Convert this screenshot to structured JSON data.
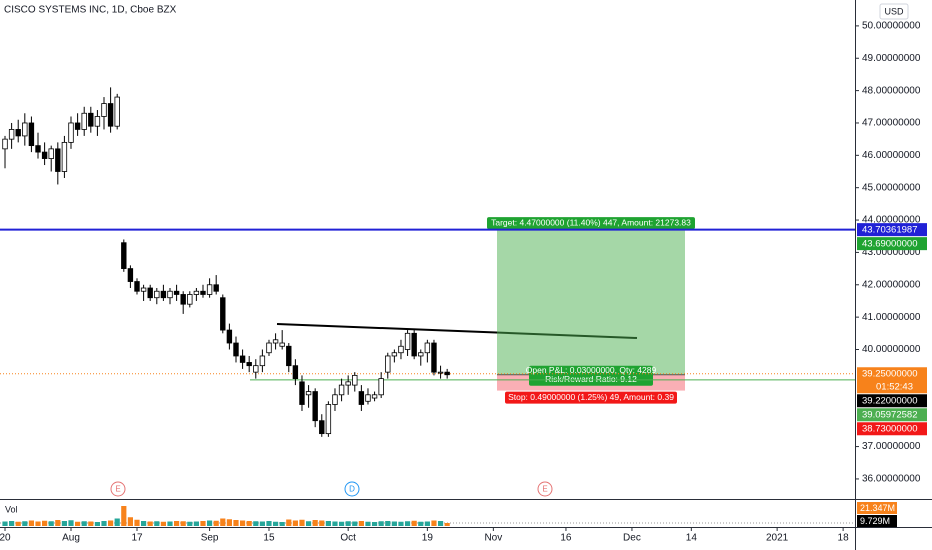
{
  "chart_data": {
    "type": "candlestick",
    "title": "CISCO SYSTEMS INC, 1D, Cboe BZX",
    "currency": "USD",
    "open": [
      46.2,
      46.5,
      46.8,
      46.6,
      47.0,
      46.3,
      46.1,
      45.9,
      46.2,
      45.5,
      46.4,
      47.0,
      46.8,
      47.3,
      46.9,
      47.2,
      47.6,
      46.9,
      43.3,
      42.5,
      42.1,
      41.8,
      41.9,
      41.6,
      41.8,
      41.6,
      41.8,
      41.7,
      41.4,
      41.7,
      41.8,
      41.7,
      42.0,
      41.6,
      40.6,
      40.2,
      39.8,
      39.6,
      39.3,
      39.5,
      39.9,
      40.2,
      40.1,
      40.1,
      39.5,
      39.0,
      38.6,
      38.7,
      37.8,
      37.4,
      38.3,
      38.6,
      38.9,
      38.9,
      38.7,
      38.4,
      38.5,
      38.6,
      39.3,
      39.8,
      39.9,
      40.0,
      40.5,
      39.8,
      39.9,
      40.2,
      39.3,
      39.3
    ],
    "high": [
      46.6,
      47.0,
      47.1,
      47.3,
      47.2,
      46.7,
      46.4,
      46.3,
      46.4,
      46.6,
      47.2,
      47.3,
      47.5,
      47.5,
      47.4,
      47.8,
      48.1,
      47.9,
      43.4,
      42.6,
      42.2,
      42.0,
      42.0,
      41.9,
      42.0,
      41.9,
      42.0,
      41.8,
      41.8,
      41.9,
      42.0,
      42.2,
      42.3,
      41.7,
      40.8,
      40.4,
      40.0,
      39.8,
      39.7,
      40.0,
      40.3,
      40.5,
      40.6,
      40.2,
      39.7,
      39.2,
      38.9,
      38.8,
      38.0,
      38.4,
      38.8,
      39.1,
      39.2,
      39.3,
      38.9,
      38.8,
      38.7,
      39.3,
      39.9,
      40.0,
      40.3,
      40.6,
      40.6,
      40.0,
      40.3,
      40.3,
      39.5,
      39.4
    ],
    "low": [
      45.6,
      46.2,
      46.4,
      46.3,
      46.1,
      45.9,
      45.7,
      45.5,
      45.1,
      45.3,
      46.2,
      46.6,
      46.6,
      46.7,
      46.6,
      46.8,
      46.7,
      46.8,
      42.4,
      41.9,
      41.7,
      41.5,
      41.5,
      41.4,
      41.5,
      41.4,
      41.5,
      41.1,
      41.3,
      41.5,
      41.6,
      41.6,
      41.7,
      40.5,
      40.0,
      39.6,
      39.4,
      39.3,
      39.1,
      39.3,
      39.8,
      40.0,
      40.0,
      39.3,
      38.9,
      38.1,
      38.2,
      37.6,
      37.3,
      37.3,
      38.1,
      38.4,
      38.6,
      38.7,
      38.1,
      38.3,
      38.4,
      38.5,
      39.1,
      39.6,
      39.7,
      39.8,
      39.7,
      39.5,
      39.6,
      39.2,
      39.1,
      39.1
    ],
    "close": [
      46.5,
      46.8,
      46.6,
      47.0,
      46.3,
      46.1,
      45.9,
      46.2,
      45.5,
      46.4,
      47.0,
      46.8,
      47.3,
      46.9,
      47.2,
      47.6,
      46.9,
      47.8,
      42.5,
      42.1,
      41.8,
      41.9,
      41.6,
      41.8,
      41.6,
      41.8,
      41.7,
      41.4,
      41.7,
      41.8,
      41.7,
      42.0,
      41.8,
      40.6,
      40.2,
      39.8,
      39.6,
      39.5,
      39.5,
      39.8,
      40.2,
      40.3,
      40.2,
      39.5,
      39.1,
      38.3,
      38.7,
      37.8,
      37.4,
      38.3,
      38.6,
      38.9,
      39.0,
      39.2,
      38.3,
      38.6,
      38.6,
      39.1,
      39.8,
      39.9,
      40.1,
      40.5,
      39.8,
      39.9,
      40.2,
      39.3,
      39.3,
      39.22
    ],
    "volume": [
      18,
      20,
      17,
      19,
      22,
      18,
      21,
      19,
      24,
      20,
      23,
      17,
      19,
      18,
      16,
      20,
      22,
      30,
      80,
      35,
      25,
      20,
      18,
      19,
      17,
      18,
      20,
      19,
      17,
      18,
      20,
      22,
      21,
      30,
      27,
      24,
      22,
      20,
      19,
      18,
      20,
      17,
      16,
      26,
      22,
      25,
      19,
      24,
      22,
      20,
      18,
      17,
      19,
      18,
      20,
      17,
      16,
      19,
      20,
      18,
      17,
      19,
      21,
      17,
      18,
      22,
      20,
      12
    ],
    "volume_label": "Vol",
    "volume_tags": [
      "21.347M",
      "9.729M"
    ],
    "up_color": "#ffffff",
    "down_color": "#000000",
    "volume_up_color": "#26a69a",
    "volume_down_color": "#f7821b",
    "ylim": [
      35.38,
      50.8
    ],
    "yticks": [
      {
        "value": 50,
        "label": "50.00000000"
      },
      {
        "value": 49,
        "label": "49.00000000"
      },
      {
        "value": 48,
        "label": "48.00000000"
      },
      {
        "value": 47,
        "label": "47.00000000"
      },
      {
        "value": 46,
        "label": "46.00000000"
      },
      {
        "value": 45,
        "label": "45.00000000"
      },
      {
        "value": 44,
        "label": "44.00000000"
      },
      {
        "value": 43,
        "label": "43.00000000"
      },
      {
        "value": 42,
        "label": "42.00000000"
      },
      {
        "value": 41,
        "label": "41.00000000"
      },
      {
        "value": 40,
        "label": "40.00000000"
      },
      {
        "value": 37,
        "label": "37.00000000"
      },
      {
        "value": 36,
        "label": "36.00000000"
      }
    ],
    "xlim": [
      -0.76,
      128.8
    ],
    "xticks": [
      {
        "value": 0,
        "label": "20"
      },
      {
        "value": 10,
        "label": "Aug"
      },
      {
        "value": 20,
        "label": "17"
      },
      {
        "value": 31,
        "label": "Sep"
      },
      {
        "value": 40,
        "label": "15"
      },
      {
        "value": 52,
        "label": "Oct"
      },
      {
        "value": 64,
        "label": "19"
      },
      {
        "value": 74,
        "label": "Nov"
      },
      {
        "value": 85,
        "label": "16"
      },
      {
        "value": 95,
        "label": "Dec"
      },
      {
        "value": 104,
        "label": "14"
      },
      {
        "value": 117,
        "label": "2021"
      },
      {
        "value": 127,
        "label": "18"
      }
    ],
    "price_tags": [
      {
        "value": 43.70361987,
        "label": "43.70361987",
        "color": "#2121d6",
        "line": true
      },
      {
        "value": 43.69,
        "label": "43.69000000",
        "color": "#1fa331"
      },
      {
        "value": 39.25,
        "label": "39.25000000",
        "color": "#f7821b",
        "sub": "01:52:43"
      },
      {
        "value": 39.22,
        "label": "39.22000000",
        "color": "#000000"
      },
      {
        "value": 39.05972582,
        "label": "39.05972582",
        "color": "#4caf50",
        "line": true
      },
      {
        "value": 38.73,
        "label": "38.73000000",
        "color": "#f21818"
      }
    ],
    "position": {
      "target": 1,
      "entry": 3,
      "stop": 5,
      "target_text": "Target: 4.47000000 (11.40%) 447, Amount: 21273.83",
      "pnl_text": "Open P&L: 0.03000000, Qty: 4289",
      "ratio_text": "Risk/Reward Ratio: 9.12",
      "stop_text": "Stop: 0.49000000 (1.25%) 49, Amount: 0.39"
    },
    "events": [
      "E",
      "D",
      "E"
    ]
  }
}
